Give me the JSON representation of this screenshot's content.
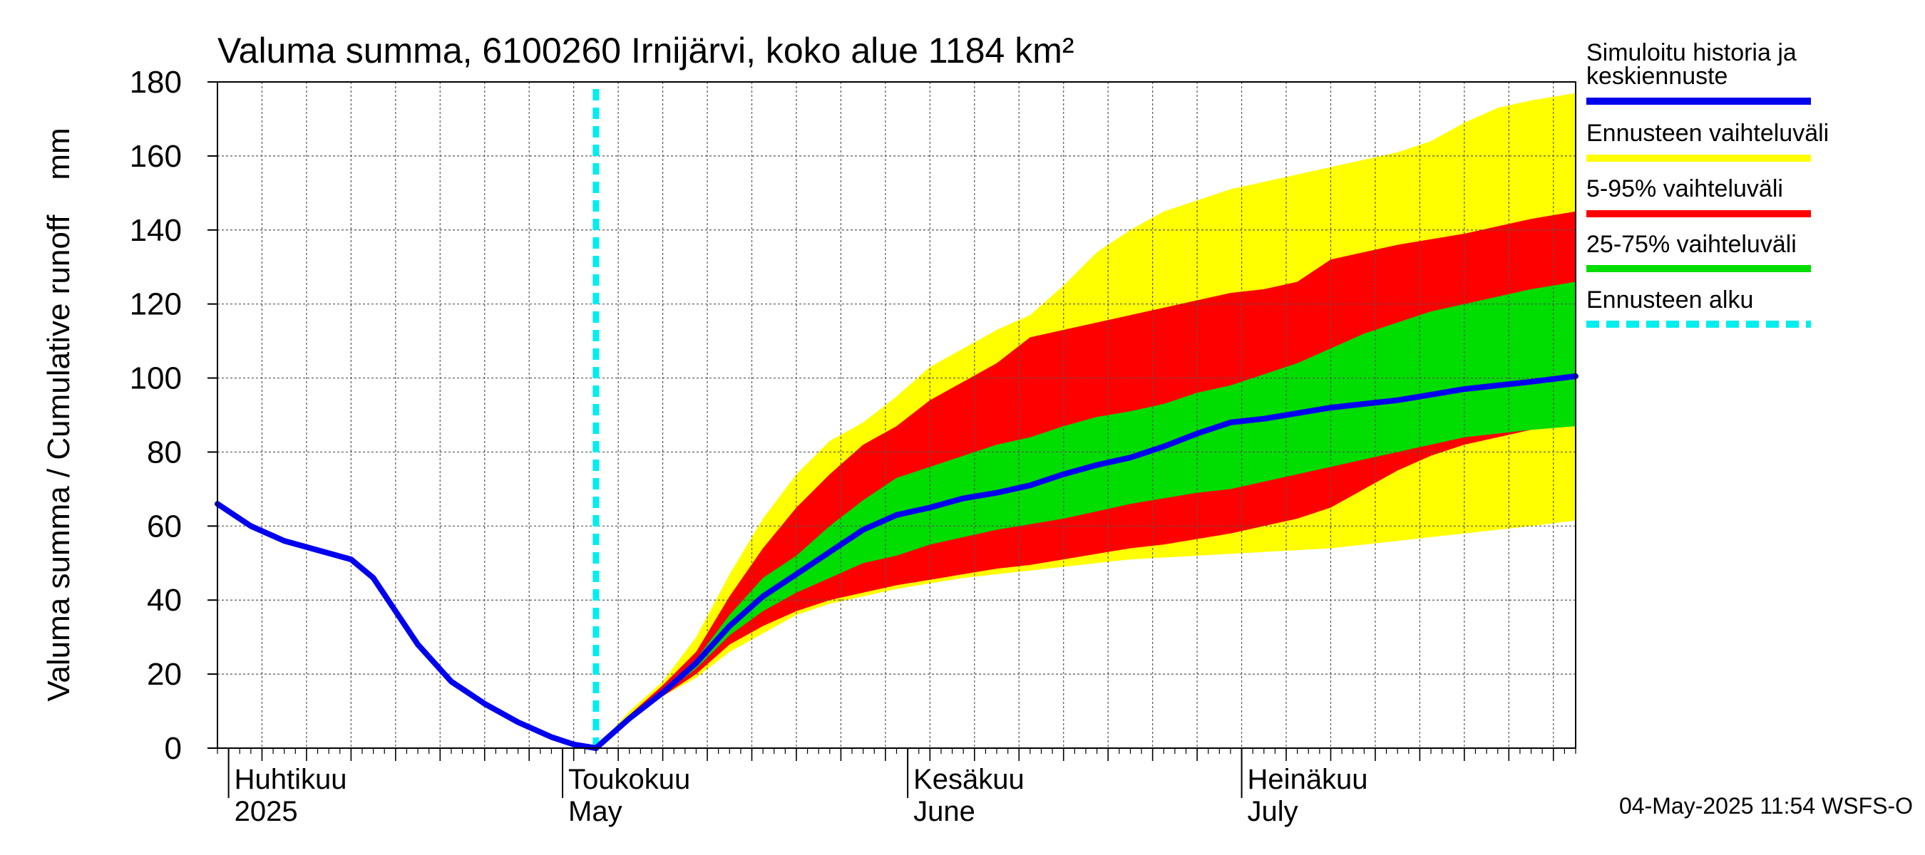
{
  "chart_data": {
    "type": "area",
    "title": "Valuma summa, 6100260 Irnijärvi, koko alue 1184 km²",
    "ylabel": "Valuma summa / Cumulative runoff    mm",
    "xlabel": "",
    "ylim": [
      0,
      180
    ],
    "yticks": [
      0,
      20,
      40,
      60,
      80,
      100,
      120,
      140,
      160,
      180
    ],
    "xlim": [
      "2025-03-31",
      "2025-07-31"
    ],
    "grid": true,
    "legend_position": "right",
    "month_labels": [
      {
        "date": "2025-04-01",
        "fi": "Huhtikuu",
        "en": "2025"
      },
      {
        "date": "2025-05-01",
        "fi": "Toukokuu",
        "en": "May"
      },
      {
        "date": "2025-06-01",
        "fi": "Kesäkuu",
        "en": "June"
      },
      {
        "date": "2025-07-01",
        "fi": "Heinäkuu",
        "en": "July"
      }
    ],
    "forecast_start": "2025-05-04",
    "history": {
      "name": "Simuloitu historia ja keskiennuste",
      "color": "#0000ee",
      "x": [
        "2025-03-31",
        "2025-04-03",
        "2025-04-06",
        "2025-04-09",
        "2025-04-12",
        "2025-04-14",
        "2025-04-16",
        "2025-04-18",
        "2025-04-21",
        "2025-04-24",
        "2025-04-27",
        "2025-04-30",
        "2025-05-02",
        "2025-05-04"
      ],
      "y": [
        66,
        60,
        56,
        53.5,
        51,
        46,
        37,
        28,
        18,
        12,
        7,
        3,
        1,
        0
      ]
    },
    "median": {
      "name": "Simuloitu historia ja keskiennuste",
      "color": "#0000ee",
      "x": [
        "2025-05-04",
        "2025-05-07",
        "2025-05-10",
        "2025-05-13",
        "2025-05-16",
        "2025-05-19",
        "2025-05-22",
        "2025-05-25",
        "2025-05-28",
        "2025-05-31",
        "2025-06-03",
        "2025-06-06",
        "2025-06-09",
        "2025-06-12",
        "2025-06-15",
        "2025-06-18",
        "2025-06-21",
        "2025-06-24",
        "2025-06-27",
        "2025-06-30",
        "2025-07-03",
        "2025-07-06",
        "2025-07-09",
        "2025-07-12",
        "2025-07-15",
        "2025-07-18",
        "2025-07-21",
        "2025-07-24",
        "2025-07-27",
        "2025-07-31"
      ],
      "y": [
        0,
        8,
        15,
        23,
        33,
        41,
        47,
        53,
        59,
        63,
        65,
        67.5,
        69,
        71,
        74,
        76.5,
        78.5,
        81.5,
        85,
        88,
        89,
        90.5,
        92,
        93,
        94,
        95.5,
        97,
        98,
        99,
        100.5
      ]
    },
    "bands": [
      {
        "name": "Ennusteen vaihteluväli",
        "color": "#ffff00",
        "x": [
          "2025-05-04",
          "2025-05-07",
          "2025-05-10",
          "2025-05-13",
          "2025-05-16",
          "2025-05-19",
          "2025-05-22",
          "2025-05-25",
          "2025-05-28",
          "2025-05-31",
          "2025-06-03",
          "2025-06-06",
          "2025-06-09",
          "2025-06-12",
          "2025-06-15",
          "2025-06-18",
          "2025-06-21",
          "2025-06-24",
          "2025-06-27",
          "2025-06-30",
          "2025-07-03",
          "2025-07-06",
          "2025-07-09",
          "2025-07-12",
          "2025-07-15",
          "2025-07-18",
          "2025-07-21",
          "2025-07-24",
          "2025-07-27",
          "2025-07-31"
        ],
        "low": [
          0,
          7,
          14,
          19,
          26,
          31,
          36,
          39,
          41,
          43,
          44.5,
          46,
          47,
          48,
          49,
          50,
          51,
          51.5,
          52,
          52.5,
          53,
          53.5,
          54,
          55,
          56,
          57,
          58,
          59,
          60,
          61.5
        ],
        "high": [
          0,
          10,
          18,
          30,
          47,
          62,
          74,
          83,
          88,
          95,
          103,
          108,
          113,
          117,
          125,
          134,
          140,
          145,
          148,
          151,
          153,
          155,
          157,
          159,
          161,
          164,
          169,
          173,
          175,
          177
        ]
      },
      {
        "name": "5-95% vaihteluväli",
        "color": "#ff0000",
        "x": [
          "2025-05-04",
          "2025-05-07",
          "2025-05-10",
          "2025-05-13",
          "2025-05-16",
          "2025-05-19",
          "2025-05-22",
          "2025-05-25",
          "2025-05-28",
          "2025-05-31",
          "2025-06-03",
          "2025-06-06",
          "2025-06-09",
          "2025-06-12",
          "2025-06-15",
          "2025-06-18",
          "2025-06-21",
          "2025-06-24",
          "2025-06-27",
          "2025-06-30",
          "2025-07-03",
          "2025-07-06",
          "2025-07-09",
          "2025-07-12",
          "2025-07-15",
          "2025-07-18",
          "2025-07-21",
          "2025-07-24",
          "2025-07-27",
          "2025-07-31"
        ],
        "low": [
          0,
          8,
          14,
          20,
          28,
          33,
          37,
          40,
          42,
          44,
          45.5,
          47,
          48.5,
          49.5,
          51,
          52.5,
          54,
          55,
          56.5,
          58,
          60,
          62,
          65,
          70,
          75,
          79,
          82,
          84,
          86,
          88.5
        ],
        "high": [
          0,
          9,
          17,
          26,
          41,
          54,
          65,
          74,
          82,
          87,
          94,
          99,
          104,
          111,
          113,
          115,
          117,
          119,
          121,
          123,
          124,
          126,
          132,
          134,
          136,
          137.5,
          139,
          141,
          143,
          145
        ]
      },
      {
        "name": "25-75% vaihteluväli",
        "color": "#00dd00",
        "x": [
          "2025-05-04",
          "2025-05-07",
          "2025-05-10",
          "2025-05-13",
          "2025-05-16",
          "2025-05-19",
          "2025-05-22",
          "2025-05-25",
          "2025-05-28",
          "2025-05-31",
          "2025-06-03",
          "2025-06-06",
          "2025-06-09",
          "2025-06-12",
          "2025-06-15",
          "2025-06-18",
          "2025-06-21",
          "2025-06-24",
          "2025-06-27",
          "2025-06-30",
          "2025-07-03",
          "2025-07-06",
          "2025-07-09",
          "2025-07-12",
          "2025-07-15",
          "2025-07-18",
          "2025-07-21",
          "2025-07-24",
          "2025-07-27",
          "2025-07-31"
        ],
        "low": [
          0,
          8,
          14.5,
          21.5,
          30.5,
          37,
          42,
          46,
          50,
          52,
          55,
          57,
          59,
          60.5,
          62,
          64,
          66,
          67.5,
          69,
          70,
          72,
          74,
          76,
          78,
          80,
          82,
          84,
          85,
          86,
          87
        ],
        "high": [
          0,
          8.5,
          15.5,
          24,
          36,
          46,
          52,
          60,
          67,
          73,
          76,
          79,
          82,
          84,
          87,
          89.5,
          91,
          93,
          96,
          98,
          101,
          104,
          108,
          112,
          115,
          118,
          120,
          122,
          124,
          126
        ]
      }
    ],
    "legend": [
      {
        "label": "Simuloitu historia ja keskiennuste",
        "color": "#0000ee",
        "style": "solid"
      },
      {
        "label": "Ennusteen vaihteluväli",
        "color": "#ffff00",
        "style": "solid"
      },
      {
        "label": "5-95% vaihteluväli",
        "color": "#ff0000",
        "style": "solid"
      },
      {
        "label": "25-75% vaihteluväli",
        "color": "#00dd00",
        "style": "solid"
      },
      {
        "label": "Ennusteen alku",
        "color": "#00eeee",
        "style": "dashed"
      }
    ],
    "footer": "04-May-2025 11:54 WSFS-O"
  }
}
